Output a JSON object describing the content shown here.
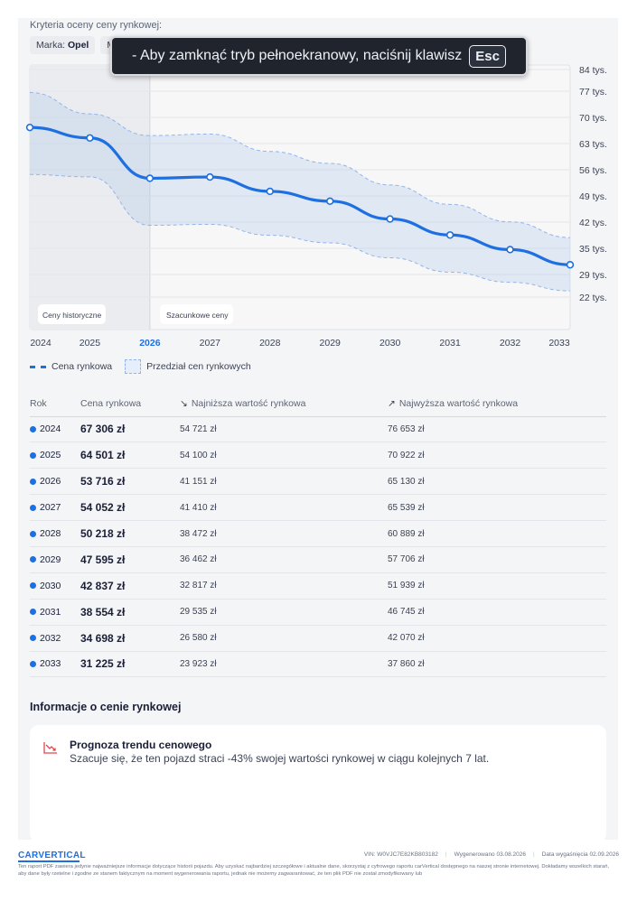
{
  "criteria": {
    "label": "Kryteria oceny ceny rynkowej:",
    "chips": [
      {
        "key": "Marka:",
        "value": "Opel"
      },
      {
        "key": "Mo",
        "value": ""
      }
    ]
  },
  "fullscreen_banner": {
    "text": "-  Aby zamknąć tryb pełnoekranowy, naciśnij klawisz",
    "key": "Esc"
  },
  "chart_data": {
    "type": "line",
    "x": [
      "2024",
      "2025",
      "2026",
      "2027",
      "2028",
      "2029",
      "2030",
      "2031",
      "2032",
      "2033"
    ],
    "highlighted_x": "2026",
    "series": [
      {
        "name": "Cena rynkowa",
        "values": [
          67306,
          64501,
          53716,
          54052,
          50218,
          47595,
          42837,
          38554,
          34698,
          31225
        ],
        "color": "#1e6fe0"
      }
    ],
    "band": {
      "name": "Przedział cen rynkowych",
      "low": [
        54721,
        54100,
        41151,
        41410,
        38472,
        36462,
        32817,
        29535,
        26580,
        23923
      ],
      "high": [
        76653,
        70922,
        65130,
        65539,
        60889,
        57706,
        51939,
        46745,
        42070,
        37860
      ],
      "color": "#93b4ea"
    },
    "y_ticks": [
      "84 tys.",
      "77 tys.",
      "70 tys.",
      "63 tys.",
      "56 tys.",
      "49 tys.",
      "42 tys.",
      "35 tys.",
      "29 tys.",
      "22 tys."
    ],
    "y_tick_values": [
      84000,
      77000,
      70000,
      63000,
      56000,
      49000,
      42000,
      35000,
      29000,
      22000
    ],
    "regions": [
      {
        "label": "Ceny historyczne",
        "from": "2024",
        "to": "2026",
        "color": "#ebecef"
      },
      {
        "label": "Szacunkowe ceny",
        "from": "2026",
        "to": "2033",
        "color": "#f7f7f8"
      }
    ],
    "ylim": [
      18000,
      86000
    ],
    "grid": true
  },
  "legend": {
    "line_label": "Cena rynkowa",
    "band_label": "Przedział cen rynkowych"
  },
  "table": {
    "headers": {
      "year": "Rok",
      "price": "Cena rynkowa",
      "min": "Najniższa wartość rynkowa",
      "max": "Najwyższa wartość rynkowa"
    },
    "rows": [
      {
        "year": "2024",
        "price": "67 306 zł",
        "min": "54 721 zł",
        "max": "76 653 zł"
      },
      {
        "year": "2025",
        "price": "64 501 zł",
        "min": "54 100 zł",
        "max": "70 922 zł"
      },
      {
        "year": "2026",
        "price": "53 716 zł",
        "min": "41 151 zł",
        "max": "65 130 zł"
      },
      {
        "year": "2027",
        "price": "54 052 zł",
        "min": "41 410 zł",
        "max": "65 539 zł"
      },
      {
        "year": "2028",
        "price": "50 218 zł",
        "min": "38 472 zł",
        "max": "60 889 zł"
      },
      {
        "year": "2029",
        "price": "47 595 zł",
        "min": "36 462 zł",
        "max": "57 706 zł"
      },
      {
        "year": "2030",
        "price": "42 837 zł",
        "min": "32 817 zł",
        "max": "51 939 zł"
      },
      {
        "year": "2031",
        "price": "38 554 zł",
        "min": "29 535 zł",
        "max": "46 745 zł"
      },
      {
        "year": "2032",
        "price": "34 698 zł",
        "min": "26 580 zł",
        "max": "42 070 zł"
      },
      {
        "year": "2033",
        "price": "31 225 zł",
        "min": "23 923 zł",
        "max": "37 860 zł"
      }
    ]
  },
  "info": {
    "heading": "Informacje o cenie rynkowej",
    "trend_title": "Prognoza trendu cenowego",
    "trend_desc": "Szacuje się, że ten pojazd straci -43% swojej wartości rynkowej w ciągu kolejnych 7 lat."
  },
  "footer": {
    "brand": "CARVERTICAL",
    "vin": "VIN: W0VJC7E82KB803182",
    "generated": "Wygenerowano  03.08.2026",
    "expires": "Data wygaśnięcia  02.09.2026",
    "disclaimer": "Ten raport PDF zawiera jedynie najważniejsze informacje dotyczące historii pojazdu. Aby uzyskać najbardziej szczegółowe i aktualne dane, skorzystaj z cyfrowego raportu carVertical dostępnego na naszej stronie internetowej. Dokładamy wszelkich starań, aby dane były rzetelne i zgodne ze stanem faktycznym na moment wygenerowania raportu, jednak nie możemy zagwarantować, że ten plik PDF nie został zmodyfikowany lub"
  },
  "colors": {
    "accent": "#1e6fe0",
    "band_fill": "#e6eefb",
    "trend_icon": "#e0454a"
  }
}
